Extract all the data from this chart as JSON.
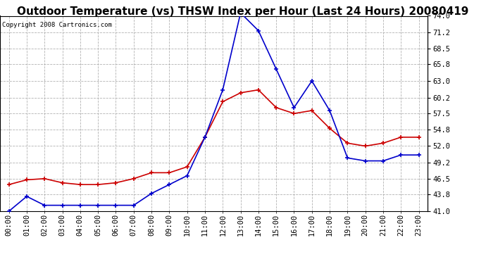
{
  "title": "Outdoor Temperature (vs) THSW Index per Hour (Last 24 Hours) 20080419",
  "copyright": "Copyright 2008 Cartronics.com",
  "hours": [
    "00:00",
    "01:00",
    "02:00",
    "03:00",
    "04:00",
    "05:00",
    "06:00",
    "07:00",
    "08:00",
    "09:00",
    "10:00",
    "11:00",
    "12:00",
    "13:00",
    "14:00",
    "15:00",
    "16:00",
    "17:00",
    "18:00",
    "19:00",
    "20:00",
    "21:00",
    "22:00",
    "23:00"
  ],
  "temp": [
    45.5,
    46.3,
    46.5,
    45.8,
    45.5,
    45.5,
    45.8,
    46.5,
    47.5,
    47.5,
    48.5,
    53.5,
    59.5,
    61.0,
    61.5,
    58.5,
    57.5,
    58.0,
    55.0,
    52.5,
    52.0,
    52.5,
    53.5,
    53.5
  ],
  "thsw": [
    41.0,
    43.5,
    42.0,
    42.0,
    42.0,
    42.0,
    42.0,
    42.0,
    44.0,
    45.5,
    47.0,
    53.5,
    61.5,
    74.5,
    71.5,
    65.0,
    58.5,
    63.0,
    58.0,
    50.0,
    49.5,
    49.5,
    50.5,
    50.5
  ],
  "ylim": [
    41.0,
    74.0
  ],
  "yticks": [
    41.0,
    43.8,
    46.5,
    49.2,
    52.0,
    54.8,
    57.5,
    60.2,
    63.0,
    65.8,
    68.5,
    71.2,
    74.0
  ],
  "temp_color": "#cc0000",
  "thsw_color": "#0000cc",
  "bg_color": "#ffffff",
  "grid_color": "#aaaaaa",
  "title_fontsize": 11,
  "tick_fontsize": 7.5,
  "copyright_fontsize": 6.5
}
